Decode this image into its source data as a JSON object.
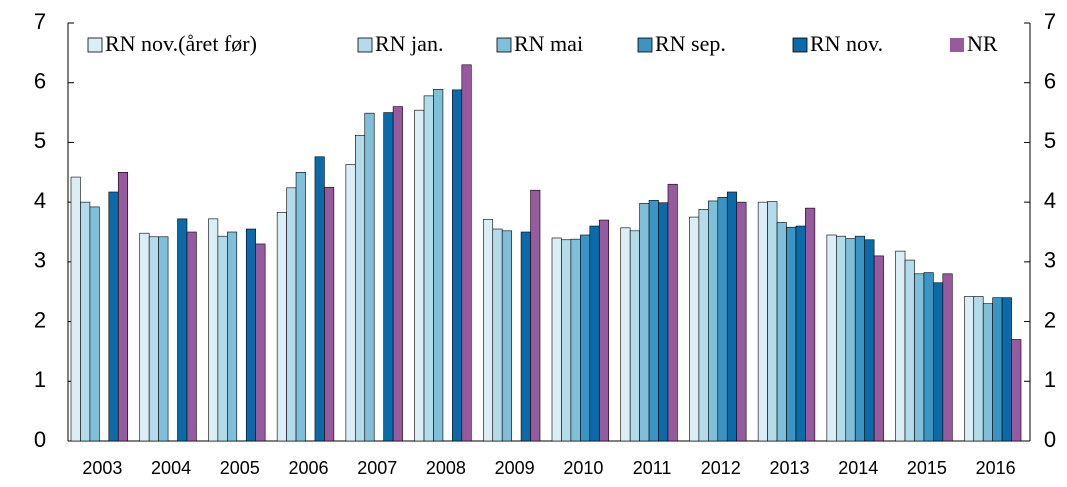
{
  "chart_data": {
    "type": "bar",
    "categories": [
      "2003",
      "2004",
      "2005",
      "2006",
      "2007",
      "2008",
      "2009",
      "2010",
      "2011",
      "2012",
      "2013",
      "2014",
      "2015",
      "2016"
    ],
    "series": [
      {
        "name": "RN nov.(året før)",
        "color": "#dbeef6",
        "values": [
          4.42,
          3.48,
          3.72,
          3.83,
          4.63,
          5.54,
          3.71,
          3.4,
          3.57,
          3.75,
          4.0,
          3.45,
          3.18,
          2.42
        ]
      },
      {
        "name": "RN jan.",
        "color": "#b4dbe9",
        "values": [
          4.0,
          3.42,
          3.43,
          4.24,
          5.12,
          5.78,
          3.55,
          3.37,
          3.52,
          3.88,
          4.01,
          3.43,
          3.03,
          2.42
        ]
      },
      {
        "name": "RN mai",
        "color": "#7fbfd9",
        "values": [
          3.92,
          3.42,
          3.5,
          4.5,
          5.49,
          5.89,
          3.52,
          3.38,
          3.98,
          4.02,
          3.66,
          3.39,
          2.8,
          2.3
        ]
      },
      {
        "name": "RN sep.",
        "color": "#3a95c4",
        "values": [
          null,
          null,
          null,
          null,
          null,
          null,
          null,
          3.45,
          4.03,
          4.08,
          3.58,
          3.43,
          2.82,
          2.4
        ]
      },
      {
        "name": "RN nov.",
        "color": "#0b6ba8",
        "values": [
          4.17,
          3.72,
          3.55,
          4.76,
          5.5,
          5.88,
          3.5,
          3.6,
          3.99,
          4.17,
          3.6,
          3.37,
          2.65,
          2.4
        ]
      },
      {
        "name": "NR",
        "color": "#985a9e",
        "values": [
          4.5,
          3.5,
          3.3,
          4.25,
          5.6,
          6.3,
          4.2,
          3.7,
          4.3,
          4.0,
          3.9,
          3.1,
          2.8,
          1.7
        ]
      }
    ],
    "ylim": [
      0,
      7
    ],
    "yticks": [
      0,
      1,
      2,
      3,
      4,
      5,
      6,
      7
    ],
    "y2lim": [
      0,
      7
    ],
    "y2ticks": [
      0,
      1,
      2,
      3,
      4,
      5,
      6,
      7
    ]
  }
}
